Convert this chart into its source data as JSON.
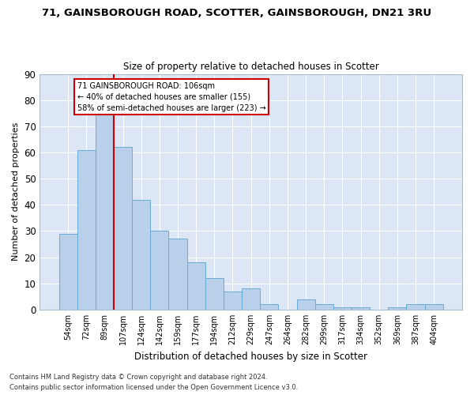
{
  "title_line1": "71, GAINSBOROUGH ROAD, SCOTTER, GAINSBOROUGH, DN21 3RU",
  "title_line2": "Size of property relative to detached houses in Scotter",
  "xlabel": "Distribution of detached houses by size in Scotter",
  "ylabel": "Number of detached properties",
  "categories": [
    "54sqm",
    "72sqm",
    "89sqm",
    "107sqm",
    "124sqm",
    "142sqm",
    "159sqm",
    "177sqm",
    "194sqm",
    "212sqm",
    "229sqm",
    "247sqm",
    "264sqm",
    "282sqm",
    "299sqm",
    "317sqm",
    "334sqm",
    "352sqm",
    "369sqm",
    "387sqm",
    "404sqm"
  ],
  "values": [
    29,
    61,
    76,
    62,
    42,
    30,
    27,
    18,
    12,
    7,
    8,
    2,
    0,
    4,
    2,
    1,
    1,
    0,
    1,
    2,
    2
  ],
  "bar_color": "#b8d0ea",
  "bar_edge_color": "#6aaad4",
  "background_color": "#dce6f5",
  "grid_color": "#ffffff",
  "annotation_text": "71 GAINSBOROUGH ROAD: 106sqm\n← 40% of detached houses are smaller (155)\n58% of semi-detached houses are larger (223) →",
  "annotation_box_color": "#ffffff",
  "annotation_box_edge_color": "#cc0000",
  "vline_color": "#cc0000",
  "vline_x": 2.5,
  "ylim": [
    0,
    90
  ],
  "yticks": [
    0,
    10,
    20,
    30,
    40,
    50,
    60,
    70,
    80,
    90
  ],
  "footnote1": "Contains HM Land Registry data © Crown copyright and database right 2024.",
  "footnote2": "Contains public sector information licensed under the Open Government Licence v3.0."
}
